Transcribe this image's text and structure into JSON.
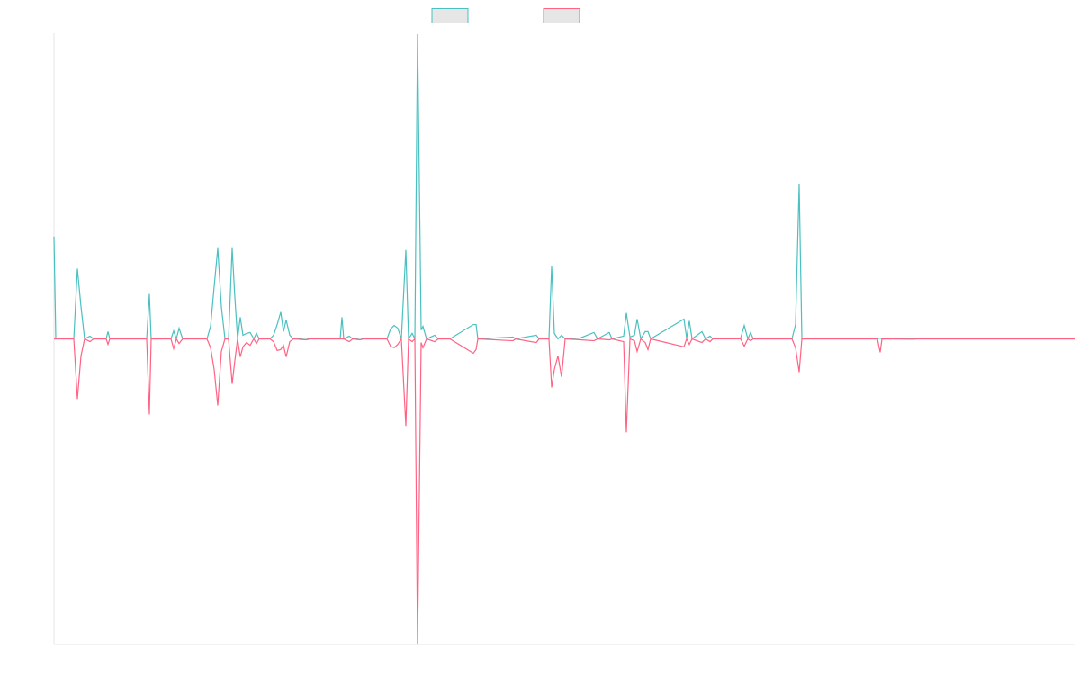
{
  "chart_data": {
    "type": "line",
    "x": [
      0,
      2,
      22,
      26,
      30,
      34,
      40,
      44,
      58,
      60,
      62,
      103,
      106,
      108,
      130,
      133,
      136,
      139,
      143,
      170,
      174,
      178,
      182,
      186,
      190,
      194,
      198,
      201,
      204,
      207,
      210,
      214,
      218,
      222,
      225,
      228,
      240,
      244,
      248,
      252,
      255,
      258,
      262,
      266,
      280,
      285,
      318,
      320,
      322,
      328,
      332,
      340,
      344,
      370,
      374,
      378,
      382,
      386,
      391,
      394,
      398,
      401,
      404,
      408,
      410,
      414,
      423,
      427,
      440,
      466,
      469,
      471,
      510,
      513,
      536,
      539,
      550,
      553,
      556,
      560,
      564,
      568,
      585,
      600,
      604,
      617,
      620,
      633,
      636,
      640,
      645,
      648,
      652,
      657,
      660,
      663,
      700,
      703,
      706,
      709,
      720,
      724,
      729,
      732,
      763,
      767,
      771,
      774,
      777,
      820,
      824,
      828,
      831,
      915,
      918,
      920,
      955,
      960,
      1135
    ],
    "series": [
      {
        "color": "#4bc0c0",
        "values": [
          33.5,
          0,
          0,
          23,
          10.6,
          0,
          0.9,
          0,
          0,
          2.4,
          0,
          0,
          14.7,
          0,
          0,
          2.6,
          0,
          3.5,
          0,
          0,
          4.1,
          17.1,
          29.7,
          10.6,
          0,
          0,
          29.7,
          13.5,
          0,
          7.1,
          1.2,
          1.8,
          2.1,
          0,
          1.8,
          0,
          0,
          1.2,
          4.7,
          8.8,
          2.4,
          6.2,
          1.2,
          0,
          0.3,
          0,
          0,
          7.1,
          0,
          0.9,
          0,
          0.3,
          0,
          0,
          3.2,
          4.4,
          3.5,
          0,
          29.1,
          0,
          1.8,
          0,
          99.7,
          2.9,
          4.1,
          0,
          1.2,
          0,
          0,
          4.7,
          4.7,
          0,
          0.6,
          0,
          1.2,
          0,
          0,
          23.8,
          1.8,
          0,
          1.2,
          0,
          0.3,
          2.1,
          0,
          2.1,
          0,
          0.9,
          8.5,
          0.6,
          1.2,
          6.5,
          0,
          2.4,
          2.4,
          0,
          6.5,
          0.3,
          5.9,
          0,
          2.4,
          0,
          0.9,
          0,
          0.3,
          4.4,
          0,
          2.1,
          0,
          0,
          4.7,
          50.6,
          0,
          0,
          0.3,
          0,
          0.1,
          0,
          0
        ]
      },
      {
        "color": "#ff6384",
        "values": [
          0,
          0,
          0,
          -19.7,
          -5.6,
          0,
          -0.9,
          0,
          0,
          -1.8,
          0,
          0,
          -24.7,
          0,
          0,
          -3.2,
          0,
          -1.5,
          0,
          0,
          -2.9,
          -10,
          -21.8,
          -4.1,
          0,
          0,
          -14.7,
          -7.1,
          0,
          -5.9,
          -2.6,
          -1.2,
          -2.1,
          0,
          -1.5,
          0,
          0,
          -0.9,
          -3.8,
          -3.5,
          -2.1,
          -5.9,
          -0.9,
          0,
          -0.3,
          0,
          0,
          0,
          0,
          -0.9,
          0,
          -0.3,
          0,
          0,
          -2.4,
          -2.9,
          -1.8,
          0,
          -28.5,
          0,
          -0.9,
          0,
          -100,
          -1.2,
          -2.9,
          0,
          -0.9,
          0,
          0,
          -4.7,
          -3.5,
          0,
          -0.6,
          0,
          -1.2,
          0,
          0,
          -15.9,
          -10,
          -5.6,
          -12.4,
          0,
          -0.3,
          -0.6,
          0,
          -0.3,
          0,
          -0.9,
          -30.6,
          0,
          -0.6,
          -4.1,
          0,
          -1.2,
          -3.5,
          0,
          -2.6,
          0,
          -1.8,
          0,
          -1.2,
          0,
          -0.9,
          0,
          0,
          -2.4,
          0,
          -0.6,
          0,
          0,
          -2.9,
          -10.9,
          0,
          0,
          -4.4,
          0,
          -0.1,
          0,
          0
        ]
      }
    ],
    "xlim": [
      0,
      1135
    ],
    "ylim": [
      -100,
      100
    ],
    "legend": "top"
  }
}
